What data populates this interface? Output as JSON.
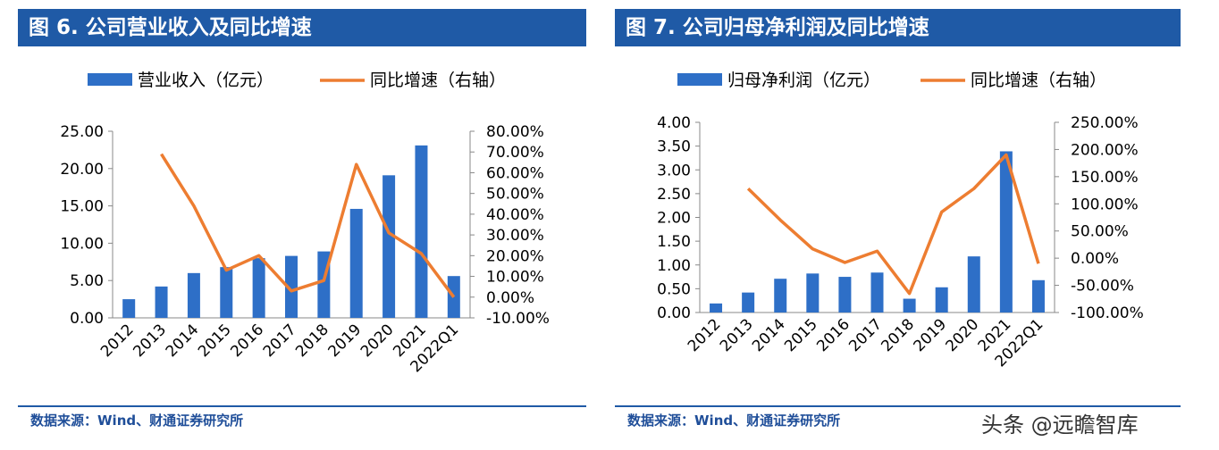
{
  "chart_data": [
    {
      "type": "bar+line",
      "title": "图 6. 公司营业收入及同比增速",
      "categories": [
        "2012",
        "2013",
        "2014",
        "2015",
        "2016",
        "2017",
        "2018",
        "2019",
        "2020",
        "2021",
        "2022Q1"
      ],
      "series": [
        {
          "name": "营业收入（亿元）",
          "type": "bar",
          "axis": "left",
          "values": [
            2.5,
            4.2,
            6.0,
            6.8,
            8.0,
            8.3,
            8.9,
            14.6,
            19.1,
            23.1,
            5.6
          ]
        },
        {
          "name": "同比增速（右轴）",
          "type": "line",
          "axis": "right",
          "values": [
            null,
            69,
            44,
            13,
            20,
            3,
            8,
            64,
            31,
            21,
            0
          ]
        }
      ],
      "ylim": [
        0,
        25
      ],
      "yticks": [
        "0.00",
        "5.00",
        "10.00",
        "15.00",
        "20.00",
        "25.00"
      ],
      "y2lim": [
        -10,
        80
      ],
      "y2ticks": [
        "-10.00%",
        "0.00%",
        "10.00%",
        "20.00%",
        "30.00%",
        "40.00%",
        "50.00%",
        "60.00%",
        "70.00%",
        "80.00%"
      ],
      "source": "数据来源：Wind、财通证券研究所",
      "legend": "top"
    },
    {
      "type": "bar+line",
      "title": "图 7. 公司归母净利润及同比增速",
      "categories": [
        "2012",
        "2013",
        "2014",
        "2015",
        "2016",
        "2017",
        "2018",
        "2019",
        "2020",
        "2021",
        "2022Q1"
      ],
      "series": [
        {
          "name": "归母净利润（亿元）",
          "type": "bar",
          "axis": "left",
          "values": [
            0.19,
            0.42,
            0.71,
            0.82,
            0.75,
            0.84,
            0.29,
            0.53,
            1.18,
            3.39,
            0.68
          ]
        },
        {
          "name": "同比增速（右轴）",
          "type": "line",
          "axis": "right",
          "values": [
            null,
            128,
            70,
            17,
            -8,
            13,
            -65,
            85,
            128,
            190,
            -10
          ]
        }
      ],
      "ylim": [
        0,
        4
      ],
      "yticks": [
        "0.00",
        "0.50",
        "1.00",
        "1.50",
        "2.00",
        "2.50",
        "3.00",
        "3.50",
        "4.00"
      ],
      "y2lim": [
        -100,
        250
      ],
      "y2ticks": [
        "-100.00%",
        "-50.00%",
        "0.00%",
        "50.00%",
        "100.00%",
        "150.00%",
        "200.00%",
        "250.00%"
      ],
      "source": "数据来源：Wind、财通证券研究所",
      "legend": "top"
    }
  ],
  "colors": {
    "bar": "#2e6fc7",
    "line": "#ed7d31",
    "header": "#1f5aa6"
  },
  "watermark": "头条 @远瞻智库"
}
